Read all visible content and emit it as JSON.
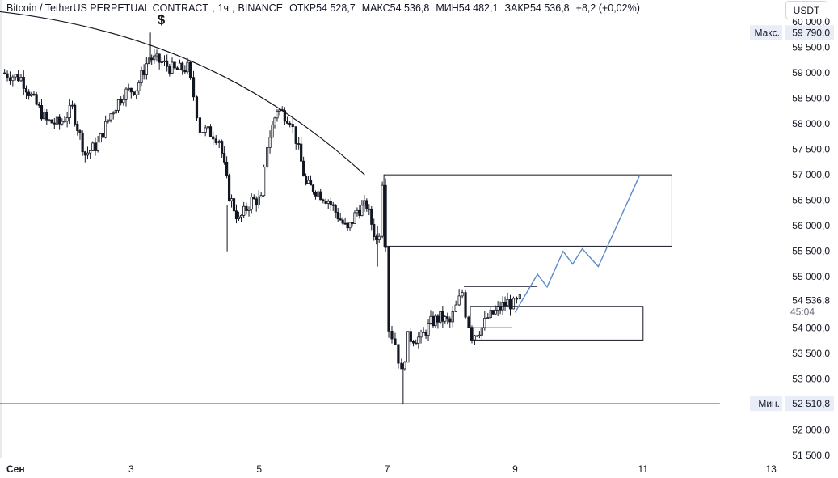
{
  "legend": {
    "symbol": "Bitcoin / TetherUS PERPETUAL CONTRACT",
    "interval": "1ч",
    "exchange": "BINANCE",
    "open_label": "ОТКР",
    "open": "54 528,7",
    "high_label": "МАКС",
    "high": "54 536,8",
    "low_label": "МИН",
    "low": "54 482,1",
    "close_label": "ЗАКР",
    "close": "54 536,8",
    "change": "+8,2 (+0,02%)"
  },
  "currency": "USDT",
  "colors": {
    "candle": "#131722",
    "forecast": "#5b8ac9",
    "badge_bg": "#e8edf7",
    "axis_text": "#131722"
  },
  "chart_data": {
    "type": "candlestick",
    "y_ticks": [
      "60 000,0",
      "59 500,0",
      "59 000,0",
      "58 500,0",
      "58 000,0",
      "57 500,0",
      "57 000,0",
      "56 500,0",
      "56 000,0",
      "55 500,0",
      "55 000,0",
      "54 000,0",
      "53 500,0",
      "53 000,0",
      "52 000,0",
      "51 500,0"
    ],
    "y_tick_values": [
      60000,
      59500,
      59000,
      58500,
      58000,
      57500,
      57000,
      56500,
      56000,
      55500,
      55000,
      54000,
      53500,
      53000,
      52000,
      51500
    ],
    "x_ticks": [
      "Сен",
      "3",
      "5",
      "7",
      "9",
      "11",
      "13"
    ],
    "x_tick_values": [
      1,
      3,
      5,
      7,
      9,
      11,
      13
    ],
    "ylim": [
      51450,
      60080
    ],
    "xlim": [
      0.95,
      13.2
    ],
    "max_label": "Макс.",
    "max_value": "59 790,0",
    "max_level": 59790,
    "min_label": "Мин.",
    "min_value": "52 510,8",
    "min_level": 52510.8,
    "last_price": "54 536,8",
    "last_level": 54536.8,
    "countdown": "45:04",
    "dollar_marker": "$",
    "dollar_marker_pos": [
      3.47,
      59950
    ],
    "anchor_points": [
      [
        1.0,
        59000
      ],
      [
        1.3,
        58900
      ],
      [
        1.5,
        58450
      ],
      [
        1.7,
        58050
      ],
      [
        1.9,
        58000
      ],
      [
        2.1,
        58300
      ],
      [
        2.3,
        57400
      ],
      [
        2.5,
        57600
      ],
      [
        2.7,
        58200
      ],
      [
        2.9,
        58600
      ],
      [
        3.1,
        58700
      ],
      [
        3.3,
        59300
      ],
      [
        3.5,
        59200
      ],
      [
        3.7,
        59050
      ],
      [
        3.9,
        59100
      ],
      [
        4.0,
        58550
      ],
      [
        4.1,
        57900
      ],
      [
        4.3,
        57800
      ],
      [
        4.4,
        57700
      ],
      [
        4.55,
        56600
      ],
      [
        4.7,
        56100
      ],
      [
        4.9,
        56500
      ],
      [
        5.05,
        56500
      ],
      [
        5.15,
        57600
      ],
      [
        5.3,
        58300
      ],
      [
        5.5,
        58100
      ],
      [
        5.6,
        57700
      ],
      [
        5.75,
        56800
      ],
      [
        5.9,
        56700
      ],
      [
        6.1,
        56500
      ],
      [
        6.25,
        56200
      ],
      [
        6.4,
        55900
      ],
      [
        6.55,
        56300
      ],
      [
        6.7,
        56400
      ],
      [
        6.85,
        55700
      ],
      [
        6.9,
        55900
      ],
      [
        6.95,
        56900
      ],
      [
        7.0,
        55700
      ],
      [
        7.05,
        54000
      ],
      [
        7.15,
        53700
      ],
      [
        7.25,
        53100
      ],
      [
        7.35,
        53800
      ],
      [
        7.55,
        53800
      ],
      [
        7.7,
        54100
      ],
      [
        7.85,
        54200
      ],
      [
        8.0,
        54100
      ],
      [
        8.1,
        54400
      ],
      [
        8.2,
        54700
      ],
      [
        8.25,
        54300
      ],
      [
        8.35,
        53850
      ],
      [
        8.5,
        54000
      ],
      [
        8.6,
        54200
      ],
      [
        8.75,
        54350
      ],
      [
        8.9,
        54500
      ],
      [
        9.0,
        54450
      ],
      [
        9.1,
        54536.8
      ]
    ],
    "arc": {
      "x": [
        0.95,
        3.2,
        5.0,
        6.65
      ],
      "y": [
        60200,
        59870,
        58880,
        57000
      ]
    },
    "box_large": {
      "x0": 6.95,
      "x1": 11.45,
      "y0": 57000,
      "y1": 55600
    },
    "box_small": {
      "x0": 8.3,
      "x1": 11.0,
      "y0": 54420,
      "y1": 53760
    },
    "hline_upper": {
      "x0": 8.2,
      "x1": 9.35,
      "y": 54810
    },
    "hline_mid": {
      "x0": 8.25,
      "x1": 8.95,
      "y": 54000
    },
    "hline_min": {
      "x0": 0.95,
      "x1": 12.2,
      "y": 52510.8
    },
    "forecast_path": [
      [
        9.0,
        54300
      ],
      [
        9.35,
        55050
      ],
      [
        9.5,
        54800
      ],
      [
        9.75,
        55500
      ],
      [
        9.9,
        55250
      ],
      [
        10.05,
        55550
      ],
      [
        10.3,
        55200
      ],
      [
        10.95,
        57000
      ]
    ]
  }
}
